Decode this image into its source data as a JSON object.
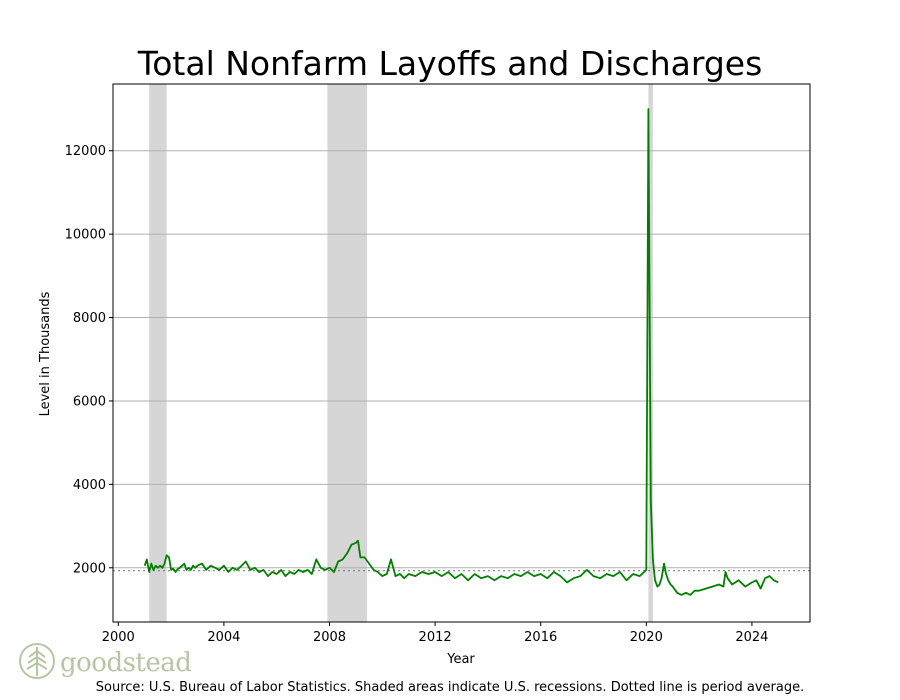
{
  "chart_data": {
    "type": "line",
    "title": "Total Nonfarm Layoffs and Discharges",
    "xlabel": "Year",
    "ylabel": "Level in Thousands",
    "xlim": [
      1999.8,
      2026.2
    ],
    "ylim": [
      700,
      13600
    ],
    "xticks": [
      2000,
      2004,
      2008,
      2012,
      2016,
      2020,
      2024
    ],
    "yticks": [
      2000,
      4000,
      6000,
      8000,
      10000,
      12000
    ],
    "grid": "horizontal",
    "legend": "none",
    "line_color": "#008000",
    "recession_color": "#d6d6d6",
    "average_line_color": "#808080",
    "recessions": [
      [
        2001.17,
        2001.83
      ],
      [
        2007.92,
        2009.42
      ],
      [
        2020.08,
        2020.25
      ]
    ],
    "period_average": 1930,
    "series": [
      {
        "name": "",
        "x": [
          2001.0,
          2001.08,
          2001.17,
          2001.25,
          2001.33,
          2001.42,
          2001.5,
          2001.58,
          2001.67,
          2001.75,
          2001.83,
          2001.92,
          2002.0,
          2002.08,
          2002.17,
          2002.25,
          2002.33,
          2002.42,
          2002.5,
          2002.58,
          2002.67,
          2002.75,
          2002.83,
          2002.92,
          2003.0,
          2003.17,
          2003.33,
          2003.5,
          2003.67,
          2003.83,
          2004.0,
          2004.17,
          2004.33,
          2004.5,
          2004.67,
          2004.83,
          2005.0,
          2005.17,
          2005.33,
          2005.5,
          2005.67,
          2005.83,
          2006.0,
          2006.17,
          2006.33,
          2006.5,
          2006.67,
          2006.83,
          2007.0,
          2007.17,
          2007.33,
          2007.5,
          2007.67,
          2007.83,
          2008.0,
          2008.17,
          2008.33,
          2008.5,
          2008.67,
          2008.83,
          2009.0,
          2009.08,
          2009.17,
          2009.33,
          2009.5,
          2009.67,
          2009.83,
          2010.0,
          2010.17,
          2010.33,
          2010.5,
          2010.67,
          2010.83,
          2011.0,
          2011.25,
          2011.5,
          2011.75,
          2012.0,
          2012.25,
          2012.5,
          2012.75,
          2013.0,
          2013.25,
          2013.5,
          2013.75,
          2014.0,
          2014.25,
          2014.5,
          2014.75,
          2015.0,
          2015.25,
          2015.5,
          2015.75,
          2016.0,
          2016.25,
          2016.5,
          2016.75,
          2017.0,
          2017.25,
          2017.5,
          2017.75,
          2018.0,
          2018.25,
          2018.5,
          2018.75,
          2019.0,
          2019.25,
          2019.5,
          2019.75,
          2019.92,
          2020.0,
          2020.08,
          2020.17,
          2020.25,
          2020.33,
          2020.42,
          2020.5,
          2020.58,
          2020.67,
          2020.75,
          2020.83,
          2020.92,
          2021.0,
          2021.17,
          2021.33,
          2021.5,
          2021.67,
          2021.83,
          2022.0,
          2022.25,
          2022.5,
          2022.75,
          2022.92,
          2023.0,
          2023.08,
          2023.25,
          2023.5,
          2023.75,
          2024.0,
          2024.17,
          2024.33,
          2024.5,
          2024.67,
          2024.83,
          2025.0
        ],
        "values": [
          2050,
          2200,
          1900,
          2100,
          1950,
          2050,
          2000,
          2050,
          2000,
          2100,
          2300,
          2250,
          1950,
          1980,
          1900,
          1970,
          2000,
          2050,
          2100,
          1950,
          2000,
          1950,
          2050,
          2000,
          2050,
          2100,
          1950,
          2050,
          2000,
          1950,
          2050,
          1900,
          2000,
          1950,
          2050,
          2150,
          1950,
          2000,
          1900,
          1950,
          1800,
          1900,
          1850,
          1950,
          1800,
          1900,
          1850,
          1950,
          1900,
          1950,
          1850,
          2200,
          2000,
          1950,
          2000,
          1900,
          2150,
          2200,
          2350,
          2550,
          2600,
          2650,
          2250,
          2250,
          2100,
          1950,
          1900,
          1800,
          1850,
          2200,
          1800,
          1850,
          1750,
          1850,
          1800,
          1900,
          1850,
          1900,
          1800,
          1900,
          1750,
          1850,
          1700,
          1850,
          1750,
          1800,
          1700,
          1800,
          1750,
          1850,
          1800,
          1900,
          1800,
          1850,
          1750,
          1900,
          1800,
          1650,
          1750,
          1800,
          1950,
          1800,
          1750,
          1850,
          1800,
          1900,
          1700,
          1850,
          1800,
          1900,
          1950,
          13000,
          3600,
          2200,
          1700,
          1550,
          1600,
          1750,
          2100,
          1850,
          1700,
          1600,
          1550,
          1400,
          1350,
          1400,
          1350,
          1450,
          1450,
          1500,
          1550,
          1600,
          1550,
          1900,
          1750,
          1600,
          1700,
          1550,
          1650,
          1700,
          1500,
          1750,
          1800,
          1700,
          1650
        ]
      }
    ]
  },
  "source_note": "Source: U.S. Bureau of Labor Statistics. Shaded areas indicate U.S. recessions. Dotted line is period average.",
  "logo": {
    "text": "goodstead",
    "icon": "tree-icon",
    "color": "#b5c6a3"
  }
}
